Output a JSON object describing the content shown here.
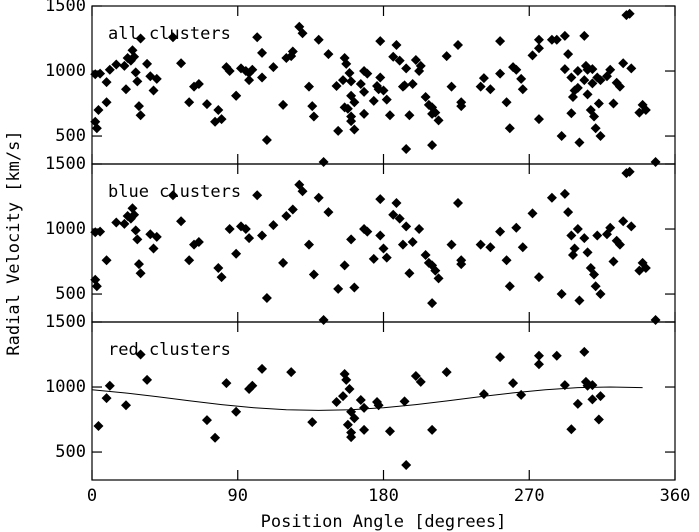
{
  "chart_data": [
    {
      "type": "scatter",
      "title": "all clusters",
      "color": "#000000",
      "xlim": [
        0,
        360
      ],
      "ylim": [
        285,
        1500
      ],
      "xticks": [
        0,
        90,
        180,
        270,
        360
      ],
      "yticks": [
        500,
        1000,
        1500
      ],
      "x": [
        2,
        2,
        3,
        5,
        9,
        15,
        20,
        22,
        24,
        25,
        26,
        27,
        28,
        29,
        30,
        36,
        38,
        40,
        50,
        55,
        60,
        63,
        66,
        78,
        80,
        85,
        89,
        92,
        95,
        97,
        102,
        105,
        108,
        112,
        118,
        120,
        124,
        128,
        130,
        134,
        137,
        140,
        143,
        146,
        152,
        156,
        160,
        162,
        168,
        170,
        174,
        178,
        178,
        180,
        182,
        186,
        188,
        190,
        192,
        194,
        196,
        198,
        202,
        206,
        208,
        210,
        210,
        212,
        214,
        222,
        226,
        228,
        228,
        240,
        246,
        252,
        256,
        258,
        262,
        266,
        272,
        276,
        284,
        290,
        292,
        294,
        296,
        297,
        298,
        300,
        301,
        304,
        306,
        308,
        310,
        311,
        312,
        314,
        318,
        320,
        322,
        324,
        326,
        328,
        330,
        332,
        333,
        338,
        340,
        342,
        348,
        4,
        9,
        11,
        21,
        30,
        34,
        71,
        76,
        83,
        89,
        97,
        99,
        105,
        123,
        136,
        151,
        155,
        156,
        157,
        159,
        158,
        160,
        160,
        160,
        162,
        166,
        168,
        168,
        176,
        177,
        184,
        194,
        193,
        200,
        203,
        210,
        219,
        242,
        252,
        260,
        265,
        276,
        276,
        287,
        292,
        296,
        300,
        304,
        305,
        306,
        309,
        309,
        313,
        314
      ],
      "values": [
        975,
        610,
        560,
        980,
        760,
        1050,
        1040,
        1100,
        1080,
        1160,
        1110,
        990,
        920,
        730,
        660,
        960,
        850,
        940,
        1260,
        1060,
        760,
        880,
        900,
        700,
        630,
        1000,
        810,
        1020,
        1000,
        930,
        1260,
        950,
        470,
        1030,
        740,
        1100,
        1150,
        1340,
        1290,
        880,
        650,
        1240,
        300,
        1130,
        540,
        720,
        920,
        550,
        1000,
        980,
        770,
        950,
        1230,
        850,
        780,
        1110,
        1200,
        1080,
        880,
        1020,
        660,
        900,
        1000,
        800,
        740,
        720,
        430,
        680,
        620,
        880,
        1200,
        760,
        730,
        880,
        860,
        980,
        760,
        560,
        1010,
        860,
        1120,
        630,
        1240,
        500,
        1270,
        1130,
        950,
        800,
        850,
        1000,
        450,
        930,
        820,
        700,
        650,
        560,
        950,
        500,
        960,
        1010,
        750,
        910,
        880,
        1060,
        1430,
        1440,
        1020,
        680,
        740,
        700,
        300,
        700,
        915,
        1010,
        860,
        1250,
        1055,
        745,
        610,
        1030,
        810,
        985,
        1010,
        1140,
        1115,
        730,
        885,
        930,
        1100,
        1055,
        985,
        710,
        810,
        650,
        615,
        760,
        900,
        670,
        840,
        885,
        860,
        660,
        400,
        890,
        1085,
        1040,
        670,
        1115,
        945,
        1230,
        1030,
        940,
        1240,
        1175,
        1240,
        1015,
        675,
        870,
        1270,
        1040,
        1010,
        1015,
        905,
        750,
        930
      ]
    },
    {
      "type": "scatter",
      "title": "blue clusters",
      "color": "#000000",
      "ylabel": "Radial Velocity [km/s]",
      "xlim": [
        0,
        360
      ],
      "ylim": [
        285,
        1500
      ],
      "xticks": [
        0,
        90,
        180,
        270,
        360
      ],
      "yticks": [
        500,
        1000,
        1500
      ],
      "x": [
        2,
        2,
        3,
        5,
        9,
        15,
        20,
        22,
        24,
        25,
        26,
        27,
        28,
        29,
        30,
        36,
        38,
        40,
        50,
        55,
        60,
        63,
        66,
        78,
        80,
        85,
        89,
        92,
        95,
        97,
        102,
        105,
        108,
        112,
        118,
        120,
        124,
        128,
        130,
        134,
        137,
        140,
        143,
        146,
        152,
        156,
        160,
        162,
        168,
        170,
        174,
        178,
        178,
        180,
        182,
        186,
        188,
        190,
        192,
        194,
        196,
        198,
        202,
        206,
        208,
        210,
        210,
        212,
        214,
        222,
        226,
        228,
        228,
        240,
        246,
        252,
        256,
        258,
        262,
        266,
        272,
        276,
        284,
        290,
        292,
        294,
        296,
        297,
        298,
        300,
        301,
        304,
        306,
        308,
        310,
        311,
        312,
        314,
        318,
        320,
        322,
        324,
        326,
        328,
        330,
        332,
        333,
        338,
        340,
        342,
        348
      ],
      "values": [
        975,
        610,
        560,
        980,
        760,
        1050,
        1040,
        1100,
        1080,
        1160,
        1110,
        990,
        920,
        730,
        660,
        960,
        850,
        940,
        1260,
        1060,
        760,
        880,
        900,
        700,
        630,
        1000,
        810,
        1020,
        1000,
        930,
        1260,
        950,
        470,
        1030,
        740,
        1100,
        1150,
        1340,
        1290,
        880,
        650,
        1240,
        300,
        1130,
        540,
        720,
        920,
        550,
        1000,
        980,
        770,
        950,
        1230,
        850,
        780,
        1110,
        1200,
        1080,
        880,
        1020,
        660,
        900,
        1000,
        800,
        740,
        720,
        430,
        680,
        620,
        880,
        1200,
        760,
        730,
        880,
        860,
        980,
        760,
        560,
        1010,
        860,
        1120,
        630,
        1240,
        500,
        1270,
        1130,
        950,
        800,
        850,
        1000,
        450,
        930,
        820,
        700,
        650,
        560,
        950,
        500,
        960,
        1010,
        750,
        910,
        880,
        1060,
        1430,
        1440,
        1020,
        680,
        740,
        700,
        300
      ]
    },
    {
      "type": "scatter",
      "title": "red clusters",
      "color": "#000000",
      "xlabel": "Position Angle [degrees]",
      "xlim": [
        0,
        360
      ],
      "ylim": [
        285,
        1500
      ],
      "xticks": [
        0,
        90,
        180,
        270,
        360
      ],
      "yticks": [
        500,
        1000,
        1500
      ],
      "x": [
        4,
        9,
        11,
        21,
        30,
        34,
        71,
        76,
        83,
        89,
        97,
        99,
        105,
        123,
        136,
        151,
        155,
        156,
        157,
        159,
        158,
        160,
        160,
        160,
        162,
        166,
        168,
        168,
        176,
        177,
        184,
        194,
        193,
        200,
        203,
        210,
        219,
        242,
        252,
        260,
        265,
        276,
        276,
        287,
        292,
        296,
        300,
        304,
        305,
        306,
        309,
        309,
        313,
        314
      ],
      "values": [
        700,
        915,
        1010,
        860,
        1250,
        1055,
        745,
        610,
        1030,
        810,
        985,
        1010,
        1140,
        1115,
        730,
        885,
        930,
        1100,
        1055,
        985,
        710,
        810,
        650,
        615,
        760,
        900,
        670,
        840,
        885,
        860,
        660,
        400,
        890,
        1085,
        1040,
        670,
        1115,
        945,
        1230,
        1030,
        940,
        1240,
        1175,
        1240,
        1015,
        675,
        870,
        1270,
        1040,
        1010,
        1015,
        905,
        750,
        930
      ],
      "curve": {
        "x": [
          0,
          20,
          40,
          60,
          80,
          100,
          120,
          140,
          160,
          180,
          200,
          220,
          240,
          260,
          280,
          300,
          320,
          340
        ],
        "values": [
          979,
          955,
          926,
          894,
          865,
          841,
          825,
          820,
          825,
          841,
          865,
          894,
          926,
          955,
          979,
          995,
          1000,
          995
        ]
      }
    }
  ]
}
